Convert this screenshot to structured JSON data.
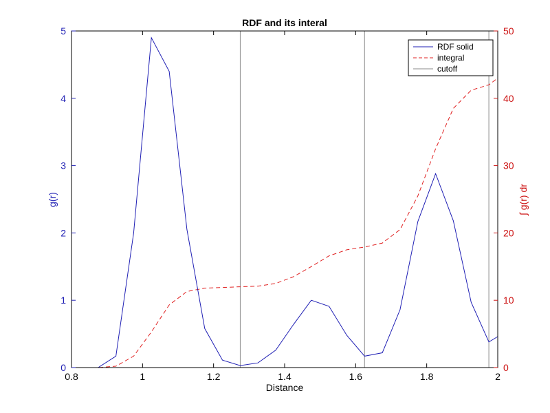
{
  "chart_data": {
    "type": "line",
    "title": "RDF and its interal",
    "xlabel": "Distance",
    "ylabel_left": "g(r)",
    "ylabel_right": "∫ g(r) dr",
    "xlim": [
      0.8,
      2.0
    ],
    "ylim_left": [
      0,
      5
    ],
    "ylim_right": [
      0,
      50
    ],
    "x_ticks": [
      "0.8",
      "1",
      "1.2",
      "1.4",
      "1.6",
      "1.8",
      "2"
    ],
    "y_left_ticks": [
      "0",
      "1",
      "2",
      "3",
      "4",
      "5"
    ],
    "y_right_ticks": [
      "0",
      "10",
      "20",
      "30",
      "40",
      "50"
    ],
    "grid": false,
    "legend_position": "top-right",
    "colors": {
      "rdf": "#1f1fb4",
      "integral": "#e02020",
      "cutoff": "#8a8a8a",
      "left_axis": "#1f1fb4",
      "right_axis": "#cc1111",
      "frame": "#000000"
    },
    "series": [
      {
        "name": "RDF solid",
        "axis": "left",
        "style": "solid",
        "x": [
          0.8,
          0.825,
          0.875,
          0.925,
          0.975,
          1.025,
          1.075,
          1.125,
          1.175,
          1.225,
          1.275,
          1.325,
          1.375,
          1.425,
          1.475,
          1.525,
          1.575,
          1.625,
          1.675,
          1.725,
          1.775,
          1.825,
          1.875,
          1.925,
          1.975,
          2.0
        ],
        "y": [
          0.0,
          0.0,
          0.0,
          0.17,
          2.0,
          4.9,
          4.4,
          2.05,
          0.58,
          0.11,
          0.03,
          0.07,
          0.26,
          0.64,
          1.0,
          0.91,
          0.48,
          0.17,
          0.22,
          0.86,
          2.17,
          2.88,
          2.18,
          0.97,
          0.38,
          0.46
        ]
      },
      {
        "name": "integral",
        "axis": "right",
        "style": "dashed",
        "x": [
          0.8,
          0.875,
          0.925,
          0.975,
          1.025,
          1.075,
          1.125,
          1.175,
          1.225,
          1.275,
          1.325,
          1.375,
          1.425,
          1.475,
          1.525,
          1.575,
          1.625,
          1.675,
          1.725,
          1.775,
          1.825,
          1.875,
          1.925,
          1.975,
          2.0
        ],
        "y": [
          0.0,
          0.0,
          0.2,
          1.7,
          5.3,
          9.3,
          11.3,
          11.8,
          11.9,
          12.0,
          12.1,
          12.5,
          13.5,
          15.0,
          16.6,
          17.5,
          17.9,
          18.5,
          20.5,
          25.5,
          32.5,
          38.5,
          41.2,
          42.0,
          43.0
        ]
      },
      {
        "name": "cutoff",
        "axis": "left",
        "style": "vertical-lines",
        "x": [
          1.275,
          1.625,
          1.975
        ]
      }
    ]
  }
}
